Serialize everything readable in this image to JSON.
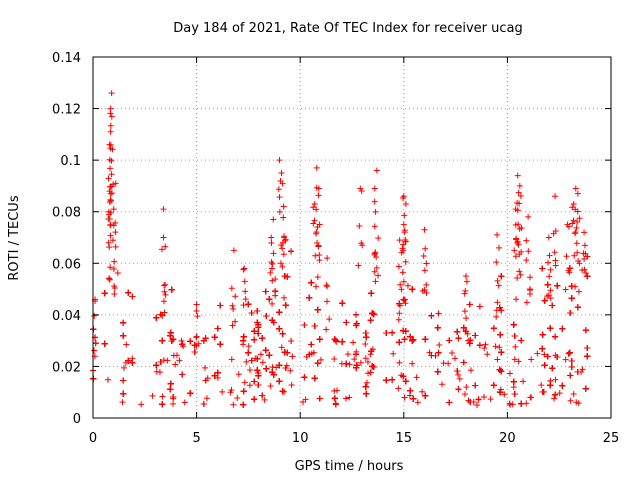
{
  "chart_data": {
    "type": "scatter",
    "title": "Day 184 of 2021, Rate Of TEC Index for receiver ucag",
    "xlabel": "GPS time / hours",
    "ylabel": "ROTI / TECUs",
    "xlim": [
      0,
      25
    ],
    "ylim": [
      0,
      0.14
    ],
    "xticks": [
      0,
      5,
      10,
      15,
      20,
      25
    ],
    "xtick_labels": [
      "0",
      "5",
      "10",
      "15",
      "20",
      "25"
    ],
    "yticks": [
      0,
      0.02,
      0.04,
      0.06,
      0.08,
      0.1,
      0.12,
      0.14
    ],
    "ytick_labels": [
      "0",
      "0.02",
      "0.04",
      "0.06",
      "0.08",
      "0.1",
      "0.12",
      "0.14"
    ],
    "grid": true,
    "marker": "+",
    "color": "#ff0000",
    "x_data_range": [
      0,
      24
    ],
    "baseline_band": [
      0.005,
      0.03
    ],
    "series": [
      {
        "name": "ROTI",
        "peaks": [
          {
            "x": 0.9,
            "y": 0.126
          },
          {
            "x": 0.85,
            "y": 0.12
          },
          {
            "x": 0.85,
            "y": 0.111
          },
          {
            "x": 0.8,
            "y": 0.106
          },
          {
            "x": 1.1,
            "y": 0.091
          },
          {
            "x": 0.8,
            "y": 0.088
          },
          {
            "x": 1.0,
            "y": 0.081
          },
          {
            "x": 3.4,
            "y": 0.081
          },
          {
            "x": 3.4,
            "y": 0.07
          },
          {
            "x": 0.1,
            "y": 0.046
          },
          {
            "x": 9.0,
            "y": 0.1
          },
          {
            "x": 9.1,
            "y": 0.095
          },
          {
            "x": 9.2,
            "y": 0.082
          },
          {
            "x": 8.7,
            "y": 0.077
          },
          {
            "x": 8.6,
            "y": 0.07
          },
          {
            "x": 10.8,
            "y": 0.097
          },
          {
            "x": 10.9,
            "y": 0.089
          },
          {
            "x": 10.7,
            "y": 0.083
          },
          {
            "x": 12.9,
            "y": 0.089
          },
          {
            "x": 13.7,
            "y": 0.096
          },
          {
            "x": 13.6,
            "y": 0.089
          },
          {
            "x": 15.0,
            "y": 0.086
          },
          {
            "x": 15.1,
            "y": 0.083
          },
          {
            "x": 15.0,
            "y": 0.075
          },
          {
            "x": 14.8,
            "y": 0.069
          },
          {
            "x": 16.0,
            "y": 0.073
          },
          {
            "x": 20.5,
            "y": 0.094
          },
          {
            "x": 20.6,
            "y": 0.09
          },
          {
            "x": 20.4,
            "y": 0.081
          },
          {
            "x": 21.0,
            "y": 0.078
          },
          {
            "x": 23.3,
            "y": 0.089
          },
          {
            "x": 23.4,
            "y": 0.087
          },
          {
            "x": 22.3,
            "y": 0.086
          },
          {
            "x": 23.2,
            "y": 0.083
          },
          {
            "x": 22.9,
            "y": 0.075
          },
          {
            "x": 6.8,
            "y": 0.065
          },
          {
            "x": 5.0,
            "y": 0.044
          },
          {
            "x": 7.3,
            "y": 0.058
          },
          {
            "x": 11.3,
            "y": 0.062
          },
          {
            "x": 18.0,
            "y": 0.055
          },
          {
            "x": 19.5,
            "y": 0.071
          },
          {
            "x": 22.0,
            "y": 0.07
          },
          {
            "x": 23.7,
            "y": 0.072
          }
        ]
      }
    ]
  }
}
